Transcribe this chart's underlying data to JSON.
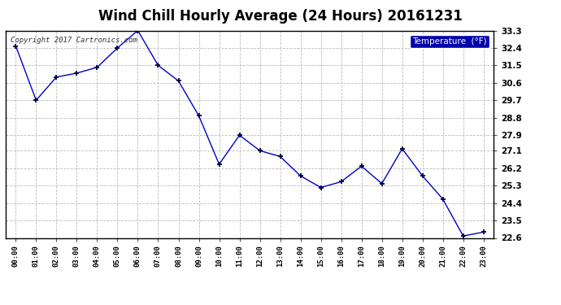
{
  "title": "Wind Chill Hourly Average (24 Hours) 20161231",
  "copyright_text": "Copyright 2017 Cartronics.com",
  "legend_label": "Temperature  (°F)",
  "x_labels": [
    "00:00",
    "01:00",
    "02:00",
    "03:00",
    "04:00",
    "05:00",
    "06:00",
    "07:00",
    "08:00",
    "09:00",
    "10:00",
    "11:00",
    "12:00",
    "13:00",
    "14:00",
    "15:00",
    "16:00",
    "17:00",
    "18:00",
    "19:00",
    "20:00",
    "21:00",
    "22:00",
    "23:00"
  ],
  "y_values": [
    32.5,
    29.7,
    30.9,
    31.1,
    31.4,
    32.4,
    33.3,
    31.5,
    30.7,
    28.9,
    26.4,
    27.9,
    27.1,
    26.8,
    25.8,
    25.2,
    25.5,
    26.3,
    25.4,
    27.2,
    25.8,
    24.6,
    22.7,
    22.9
  ],
  "y_ticks": [
    22.6,
    23.5,
    24.4,
    25.3,
    26.2,
    27.1,
    27.9,
    28.8,
    29.7,
    30.6,
    31.5,
    32.4,
    33.3
  ],
  "ylim": [
    22.6,
    33.3
  ],
  "line_color": "#0000cc",
  "marker": "+",
  "marker_size": 5,
  "marker_color": "#000033",
  "background_color": "#ffffff",
  "plot_bg_color": "#ffffff",
  "grid_color": "#bbbbbb",
  "title_fontsize": 12,
  "legend_bg": "#0000aa",
  "legend_fg": "#ffffff"
}
